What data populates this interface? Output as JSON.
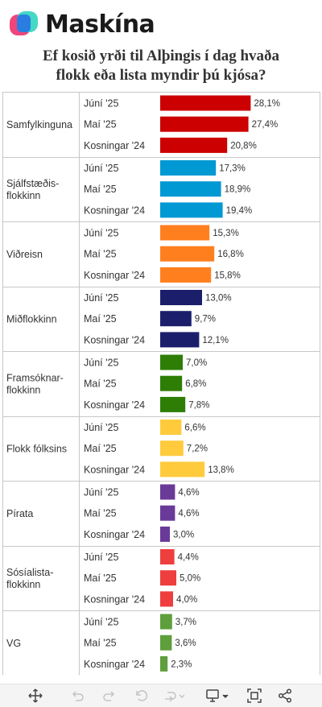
{
  "brand": {
    "name": "Maskína",
    "colors": {
      "pink": "#f0457a",
      "teal": "#3ad6c3",
      "blue": "#2a7de1"
    }
  },
  "title_lines": [
    "Ef kosið yrði til Alþingis í dag hvaða",
    "flokk eða lista myndir þú kjósa?"
  ],
  "chart_data": {
    "type": "bar",
    "orientation": "horizontal",
    "value_suffix": "%",
    "subcategories": [
      "Júní '25",
      "Maí '25",
      "Kosningar '24"
    ],
    "groups": [
      {
        "lines": [
          "Samfylkinguna"
        ],
        "color": "#cc0000",
        "values": [
          "28,1",
          "27,4",
          "20,8"
        ]
      },
      {
        "lines": [
          "Sjálfstæðis-",
          "flokkinn"
        ],
        "color": "#0099d4",
        "values": [
          "17,3",
          "18,9",
          "19,4"
        ]
      },
      {
        "lines": [
          "Viðreisn"
        ],
        "color": "#ff7f1f",
        "values": [
          "15,3",
          "16,8",
          "15,8"
        ]
      },
      {
        "lines": [
          "Miðflokkinn"
        ],
        "color": "#1b1f6b",
        "values": [
          "13,0",
          "9,7",
          "12,1"
        ]
      },
      {
        "lines": [
          "Framsóknar-",
          "flokkinn"
        ],
        "color": "#2e7d05",
        "values": [
          "7,0",
          "6,8",
          "7,8"
        ]
      },
      {
        "lines": [
          "Flokk fólksins"
        ],
        "color": "#ffcb3d",
        "values": [
          "6,6",
          "7,2",
          "13,8"
        ]
      },
      {
        "lines": [
          "Pírata"
        ],
        "color": "#6a3a98",
        "values": [
          "4,6",
          "4,6",
          "3,0"
        ]
      },
      {
        "lines": [
          "Sósíalista-",
          "flokkinn"
        ],
        "color": "#ee3e3e",
        "values": [
          "4,4",
          "5,0",
          "4,0"
        ]
      },
      {
        "lines": [
          "VG"
        ],
        "color": "#5f9e3c",
        "values": [
          "3,7",
          "3,6",
          "2,3"
        ]
      }
    ],
    "grid": false,
    "legend": "none"
  },
  "toolbar": {
    "icons": [
      "move-icon",
      "undo-icon",
      "redo-icon",
      "reset-icon",
      "forward-icon",
      "download-icon",
      "fullscreen-icon",
      "share-icon"
    ]
  }
}
